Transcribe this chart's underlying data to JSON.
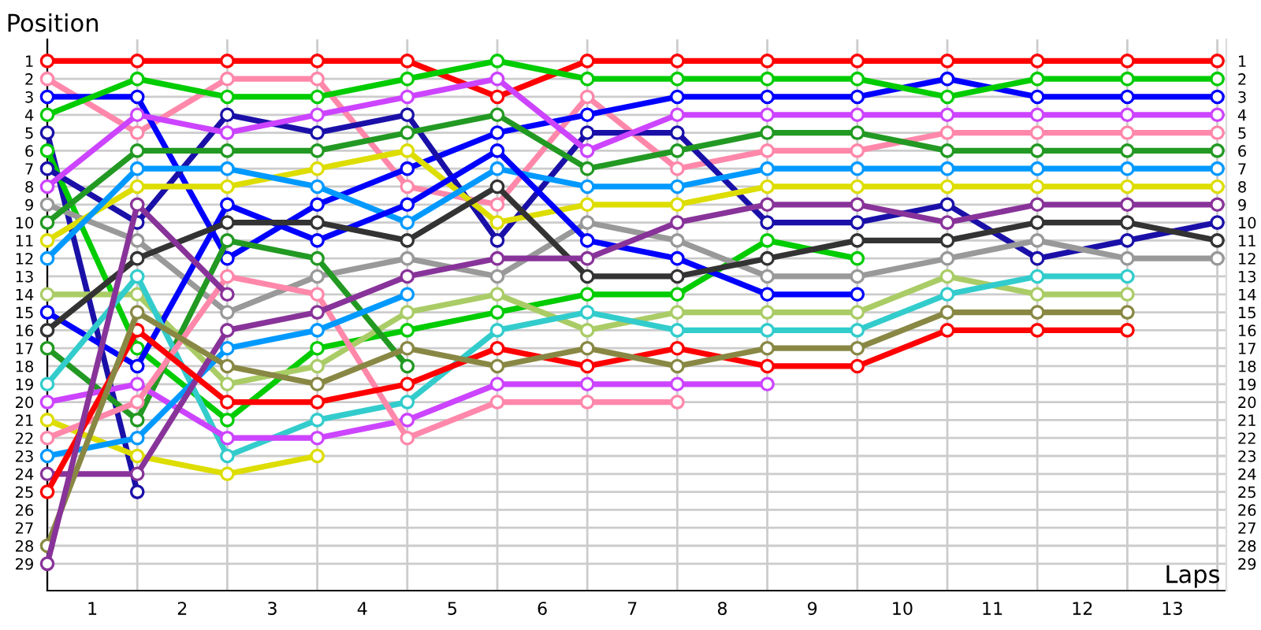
{
  "chart_data": {
    "type": "line",
    "xlabel": "Laps",
    "ylabel": "Position",
    "x": [
      0,
      1,
      2,
      3,
      4,
      5,
      6,
      7,
      8,
      9,
      10,
      11,
      12,
      13
    ],
    "xlim": [
      0,
      13.1
    ],
    "xticks": [
      {
        "value": 0,
        "label": null
      },
      {
        "value": 1,
        "label": null
      },
      {
        "value": 2,
        "label": null
      },
      {
        "value": 3,
        "label": null
      },
      {
        "value": 4,
        "label": null
      },
      {
        "value": 5,
        "label": null
      },
      {
        "value": 6,
        "label": null
      },
      {
        "value": 7,
        "label": null
      },
      {
        "value": 8,
        "label": null
      },
      {
        "value": 9,
        "label": null
      },
      {
        "value": 10,
        "label": null
      },
      {
        "value": 11,
        "label": null
      },
      {
        "value": 12,
        "label": null
      },
      {
        "value": 13,
        "label": null
      },
      {
        "value": 0.5,
        "label": "1"
      },
      {
        "value": 1.5,
        "label": "2"
      },
      {
        "value": 2.5,
        "label": "3"
      },
      {
        "value": 3.5,
        "label": "4"
      },
      {
        "value": 4.5,
        "label": "5"
      },
      {
        "value": 5.5,
        "label": "6"
      },
      {
        "value": 6.5,
        "label": "7"
      },
      {
        "value": 7.5,
        "label": "8"
      },
      {
        "value": 8.5,
        "label": "9"
      },
      {
        "value": 9.5,
        "label": "10"
      },
      {
        "value": 10.5,
        "label": "11"
      },
      {
        "value": 11.5,
        "label": "12"
      },
      {
        "value": 12.5,
        "label": "13"
      }
    ],
    "ylim": [
      30.5,
      -0.2
    ],
    "yticks": [
      1,
      2,
      3,
      4,
      5,
      6,
      7,
      8,
      9,
      10,
      11,
      12,
      13,
      14,
      15,
      16,
      17,
      18,
      19,
      20,
      21,
      22,
      23,
      24,
      25,
      26,
      27,
      28,
      29
    ],
    "y2lim": [
      30.5,
      -0.2
    ],
    "y2ticks": [
      1,
      2,
      3,
      4,
      5,
      6,
      7,
      8,
      9,
      10,
      11,
      12,
      13,
      14,
      15,
      16,
      17,
      18,
      19,
      20,
      21,
      22,
      23,
      24,
      25,
      26,
      27,
      28,
      29
    ],
    "grid": true,
    "marker": "circle",
    "line_style": "solid",
    "series": [
      {
        "color": "#ff0000",
        "values": [
          1,
          1,
          1,
          1,
          1,
          3,
          1,
          1,
          1,
          1,
          1,
          1,
          1,
          1
        ]
      },
      {
        "color": "#ff88aa",
        "values": [
          2,
          5,
          2,
          2,
          8,
          9,
          3,
          7,
          6,
          6,
          5,
          5,
          5,
          5
        ]
      },
      {
        "color": "#0000ff",
        "values": [
          3,
          3,
          12,
          9,
          7,
          5,
          4,
          3,
          3,
          3,
          2,
          3,
          3,
          3
        ]
      },
      {
        "color": "#00cc00",
        "values": [
          4,
          2,
          3,
          3,
          2,
          1,
          2,
          2,
          2,
          2,
          3,
          2,
          2,
          2
        ]
      },
      {
        "color": "#1a10a8",
        "values": [
          5,
          25,
          null,
          null,
          null,
          null,
          null,
          null,
          null,
          null,
          null,
          null,
          null,
          null
        ]
      },
      {
        "color": "#00cc00",
        "values": [
          6,
          17,
          21,
          17,
          16,
          15,
          14,
          14,
          11,
          12,
          null,
          null,
          null,
          null
        ]
      },
      {
        "color": "#1a10a8",
        "values": [
          7,
          10,
          4,
          5,
          4,
          11,
          5,
          5,
          10,
          10,
          9,
          12,
          11,
          10
        ]
      },
      {
        "color": "#cc44ff",
        "values": [
          8,
          4,
          5,
          4,
          3,
          2,
          6,
          4,
          4,
          4,
          4,
          4,
          4,
          4
        ]
      },
      {
        "color": "#999999",
        "values": [
          9,
          11,
          15,
          13,
          12,
          13,
          10,
          11,
          13,
          13,
          12,
          11,
          12,
          12
        ]
      },
      {
        "color": "#229922",
        "values": [
          10,
          6,
          6,
          6,
          5,
          4,
          7,
          6,
          5,
          5,
          6,
          6,
          6,
          6
        ]
      },
      {
        "color": "#dddd00",
        "values": [
          11,
          8,
          8,
          7,
          6,
          10,
          9,
          9,
          8,
          8,
          8,
          8,
          8,
          8
        ]
      },
      {
        "color": "#0099ff",
        "values": [
          12,
          7,
          7,
          8,
          10,
          7,
          8,
          8,
          7,
          7,
          7,
          7,
          7,
          7
        ]
      },
      {
        "color": "#aacc66",
        "values": [
          14,
          14,
          19,
          18,
          15,
          14,
          16,
          15,
          15,
          15,
          13,
          14,
          14,
          null
        ]
      },
      {
        "color": "#0000ff",
        "values": [
          15,
          18,
          9,
          11,
          9,
          6,
          11,
          12,
          14,
          14,
          null,
          null,
          null,
          null
        ]
      },
      {
        "color": "#333333",
        "values": [
          16,
          12,
          10,
          10,
          11,
          8,
          13,
          13,
          12,
          11,
          11,
          10,
          10,
          11
        ]
      },
      {
        "color": "#229922",
        "values": [
          17,
          21,
          11,
          12,
          18,
          null,
          null,
          null,
          null,
          null,
          null,
          null,
          null,
          null
        ]
      },
      {
        "color": "#33cccc",
        "values": [
          19,
          13,
          23,
          21,
          20,
          16,
          15,
          16,
          16,
          16,
          14,
          13,
          13,
          null
        ]
      },
      {
        "color": "#cc44ff",
        "values": [
          20,
          19,
          22,
          22,
          21,
          19,
          19,
          19,
          19,
          null,
          null,
          null,
          null,
          null
        ]
      },
      {
        "color": "#dddd00",
        "values": [
          21,
          23,
          24,
          23,
          null,
          null,
          null,
          null,
          null,
          null,
          null,
          null,
          null,
          null
        ]
      },
      {
        "color": "#ff88aa",
        "values": [
          22,
          20,
          13,
          14,
          22,
          20,
          20,
          20,
          null,
          null,
          null,
          null,
          null,
          null
        ]
      },
      {
        "color": "#0099ff",
        "values": [
          23,
          22,
          17,
          16,
          14,
          null,
          null,
          null,
          null,
          null,
          null,
          null,
          null,
          null
        ]
      },
      {
        "color": "#883399",
        "values": [
          24,
          24,
          16,
          15,
          13,
          12,
          12,
          10,
          9,
          9,
          10,
          9,
          9,
          9
        ]
      },
      {
        "color": "#ff0000",
        "values": [
          25,
          16,
          20,
          20,
          19,
          17,
          18,
          17,
          18,
          18,
          16,
          16,
          16,
          null
        ]
      },
      {
        "color": "#888844",
        "values": [
          28,
          15,
          18,
          19,
          17,
          18,
          17,
          18,
          17,
          17,
          15,
          15,
          15,
          null
        ]
      },
      {
        "color": "#883399",
        "values": [
          29,
          9,
          14,
          null,
          null,
          null,
          null,
          null,
          null,
          null,
          null,
          null,
          null,
          null
        ]
      }
    ]
  }
}
